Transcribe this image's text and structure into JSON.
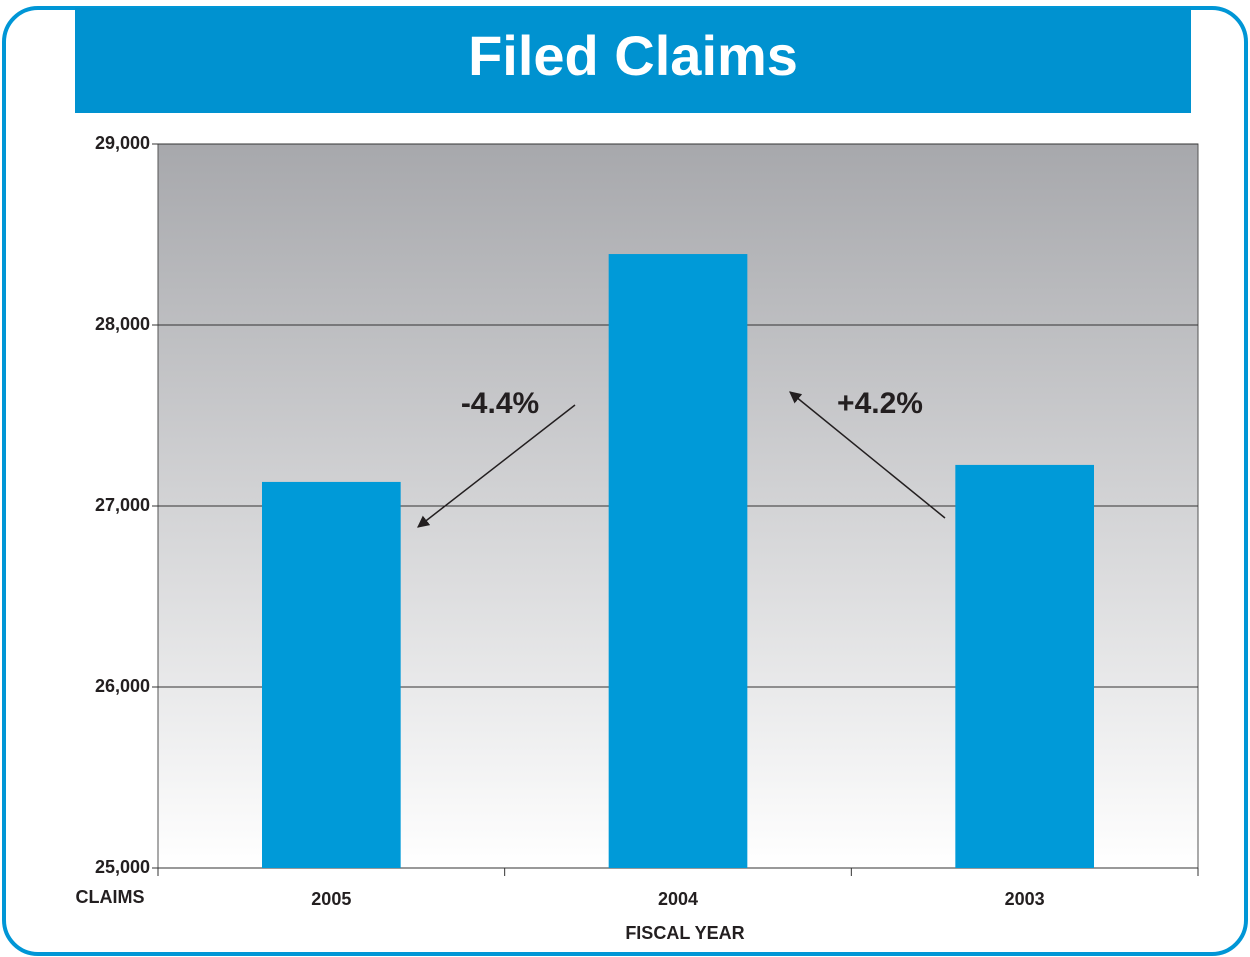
{
  "chart_data": {
    "type": "bar",
    "title": "Filed Claims",
    "categories": [
      "2005",
      "2004",
      "2003"
    ],
    "values": [
      27133,
      28392,
      27227
    ],
    "color": "#009ad8",
    "ylim": [
      25000,
      29000
    ],
    "yticks": [
      {
        "value": 25000,
        "label": "25,000"
      },
      {
        "value": 26000,
        "label": "26,000"
      },
      {
        "value": 27000,
        "label": "27,000"
      },
      {
        "value": 28000,
        "label": "28,000"
      },
      {
        "value": 29000,
        "label": "29,000"
      }
    ],
    "grid": true,
    "y_label": "CLAIMS",
    "x_label": "FISCAL YEAR",
    "annotations": [
      "-4.4%",
      "+4.2%"
    ]
  }
}
